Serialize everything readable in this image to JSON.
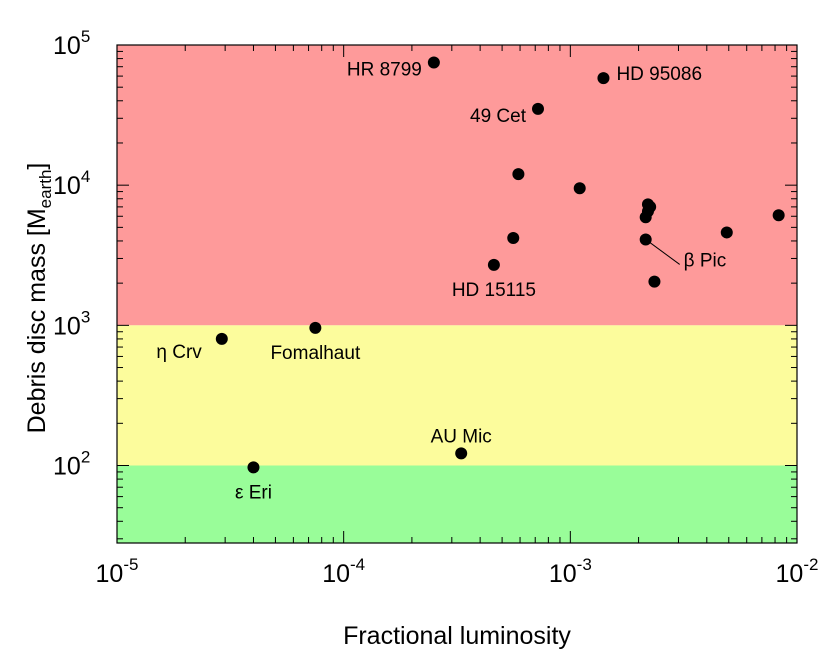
{
  "chart_data": {
    "type": "scatter",
    "title": "",
    "xlabel": "Fractional luminosity",
    "ylabel": "Debris disc mass [M",
    "ylabel_sub": "earth",
    "ylabel_end": "]",
    "x_scale": "log",
    "y_scale": "log",
    "xlim": [
      1e-05,
      0.01
    ],
    "ylim": [
      28,
      100000
    ],
    "x_ticks": [
      {
        "value": 1e-05,
        "base": "10",
        "exp": "-5"
      },
      {
        "value": 0.0001,
        "base": "10",
        "exp": "-4"
      },
      {
        "value": 0.001,
        "base": "10",
        "exp": "-3"
      },
      {
        "value": 0.01,
        "base": "10",
        "exp": "-2"
      }
    ],
    "y_ticks": [
      {
        "value": 100,
        "base": "10",
        "exp": "2"
      },
      {
        "value": 1000,
        "base": "10",
        "exp": "3"
      },
      {
        "value": 10000,
        "base": "10",
        "exp": "4"
      },
      {
        "value": 100000,
        "base": "10",
        "exp": "5"
      }
    ],
    "grid": false,
    "bands": [
      {
        "from": 1000,
        "to": 100000,
        "color": "#fe9a9a"
      },
      {
        "from": 100,
        "to": 1000,
        "color": "#fcfc9c"
      },
      {
        "from": 28,
        "to": 100,
        "color": "#99fd99"
      }
    ],
    "points": [
      {
        "x": 0.00025,
        "y": 75000,
        "label": "HR 8799",
        "label_pos": "left"
      },
      {
        "x": 0.0014,
        "y": 58000,
        "label": "HD 95086",
        "label_pos": "right"
      },
      {
        "x": 0.00072,
        "y": 35000,
        "label": "49 Cet",
        "label_pos": "left"
      },
      {
        "x": 0.00059,
        "y": 12000,
        "label": "",
        "label_pos": ""
      },
      {
        "x": 0.0011,
        "y": 9500,
        "label": "",
        "label_pos": ""
      },
      {
        "x": 0.0022,
        "y": 7300,
        "label": "",
        "label_pos": ""
      },
      {
        "x": 0.00225,
        "y": 7000,
        "label": "",
        "label_pos": ""
      },
      {
        "x": 0.0022,
        "y": 6500,
        "label": "",
        "label_pos": ""
      },
      {
        "x": 0.00215,
        "y": 5900,
        "label": "",
        "label_pos": ""
      },
      {
        "x": 0.0083,
        "y": 6100,
        "label": "",
        "label_pos": ""
      },
      {
        "x": 0.0049,
        "y": 4600,
        "label": "",
        "label_pos": ""
      },
      {
        "x": 0.00056,
        "y": 4200,
        "label": "",
        "label_pos": ""
      },
      {
        "x": 0.00215,
        "y": 4100,
        "label": "β Pic",
        "label_pos": "leader"
      },
      {
        "x": 0.00046,
        "y": 2700,
        "label": "HD 15115",
        "label_pos": "below"
      },
      {
        "x": 0.00235,
        "y": 2050,
        "label": "",
        "label_pos": ""
      },
      {
        "x": 7.5e-05,
        "y": 960,
        "label": "Fomalhaut",
        "label_pos": "below"
      },
      {
        "x": 2.9e-05,
        "y": 800,
        "label": "η Crv",
        "label_pos": "below-left"
      },
      {
        "x": 0.00033,
        "y": 122,
        "label": "AU Mic",
        "label_pos": "above"
      },
      {
        "x": 4e-05,
        "y": 97,
        "label": "ε Eri",
        "label_pos": "below"
      }
    ]
  }
}
